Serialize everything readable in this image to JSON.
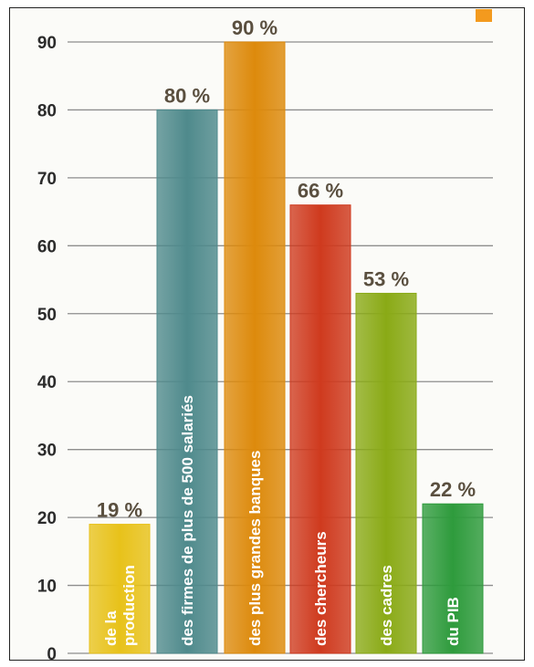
{
  "chart_data": {
    "type": "bar",
    "categories": [
      "de la production",
      "des firmes de plus de 500 salariés",
      "des plus grandes banques",
      "des chercheurs",
      "des cadres",
      "du PIB"
    ],
    "category_lines": [
      [
        "de la",
        "production"
      ],
      [
        "des firmes de plus de 500 salariés"
      ],
      [
        "des plus grandes banques"
      ],
      [
        "des chercheurs"
      ],
      [
        "des cadres"
      ],
      [
        "du PIB"
      ]
    ],
    "values": [
      19,
      80,
      90,
      66,
      53,
      22
    ],
    "value_labels": [
      "19 %",
      "80 %",
      "90 %",
      "66 %",
      "53 %",
      "22 %"
    ],
    "colors": [
      "#e8c21a",
      "#4f8a8c",
      "#dd8a0c",
      "#cf3a1e",
      "#8aaa16",
      "#2e9b3c"
    ],
    "title": "",
    "xlabel": "",
    "ylabel": "",
    "ylim": [
      0,
      90
    ],
    "yticks": [
      0,
      10,
      20,
      30,
      40,
      50,
      60,
      70,
      80,
      90
    ],
    "grid": true
  }
}
